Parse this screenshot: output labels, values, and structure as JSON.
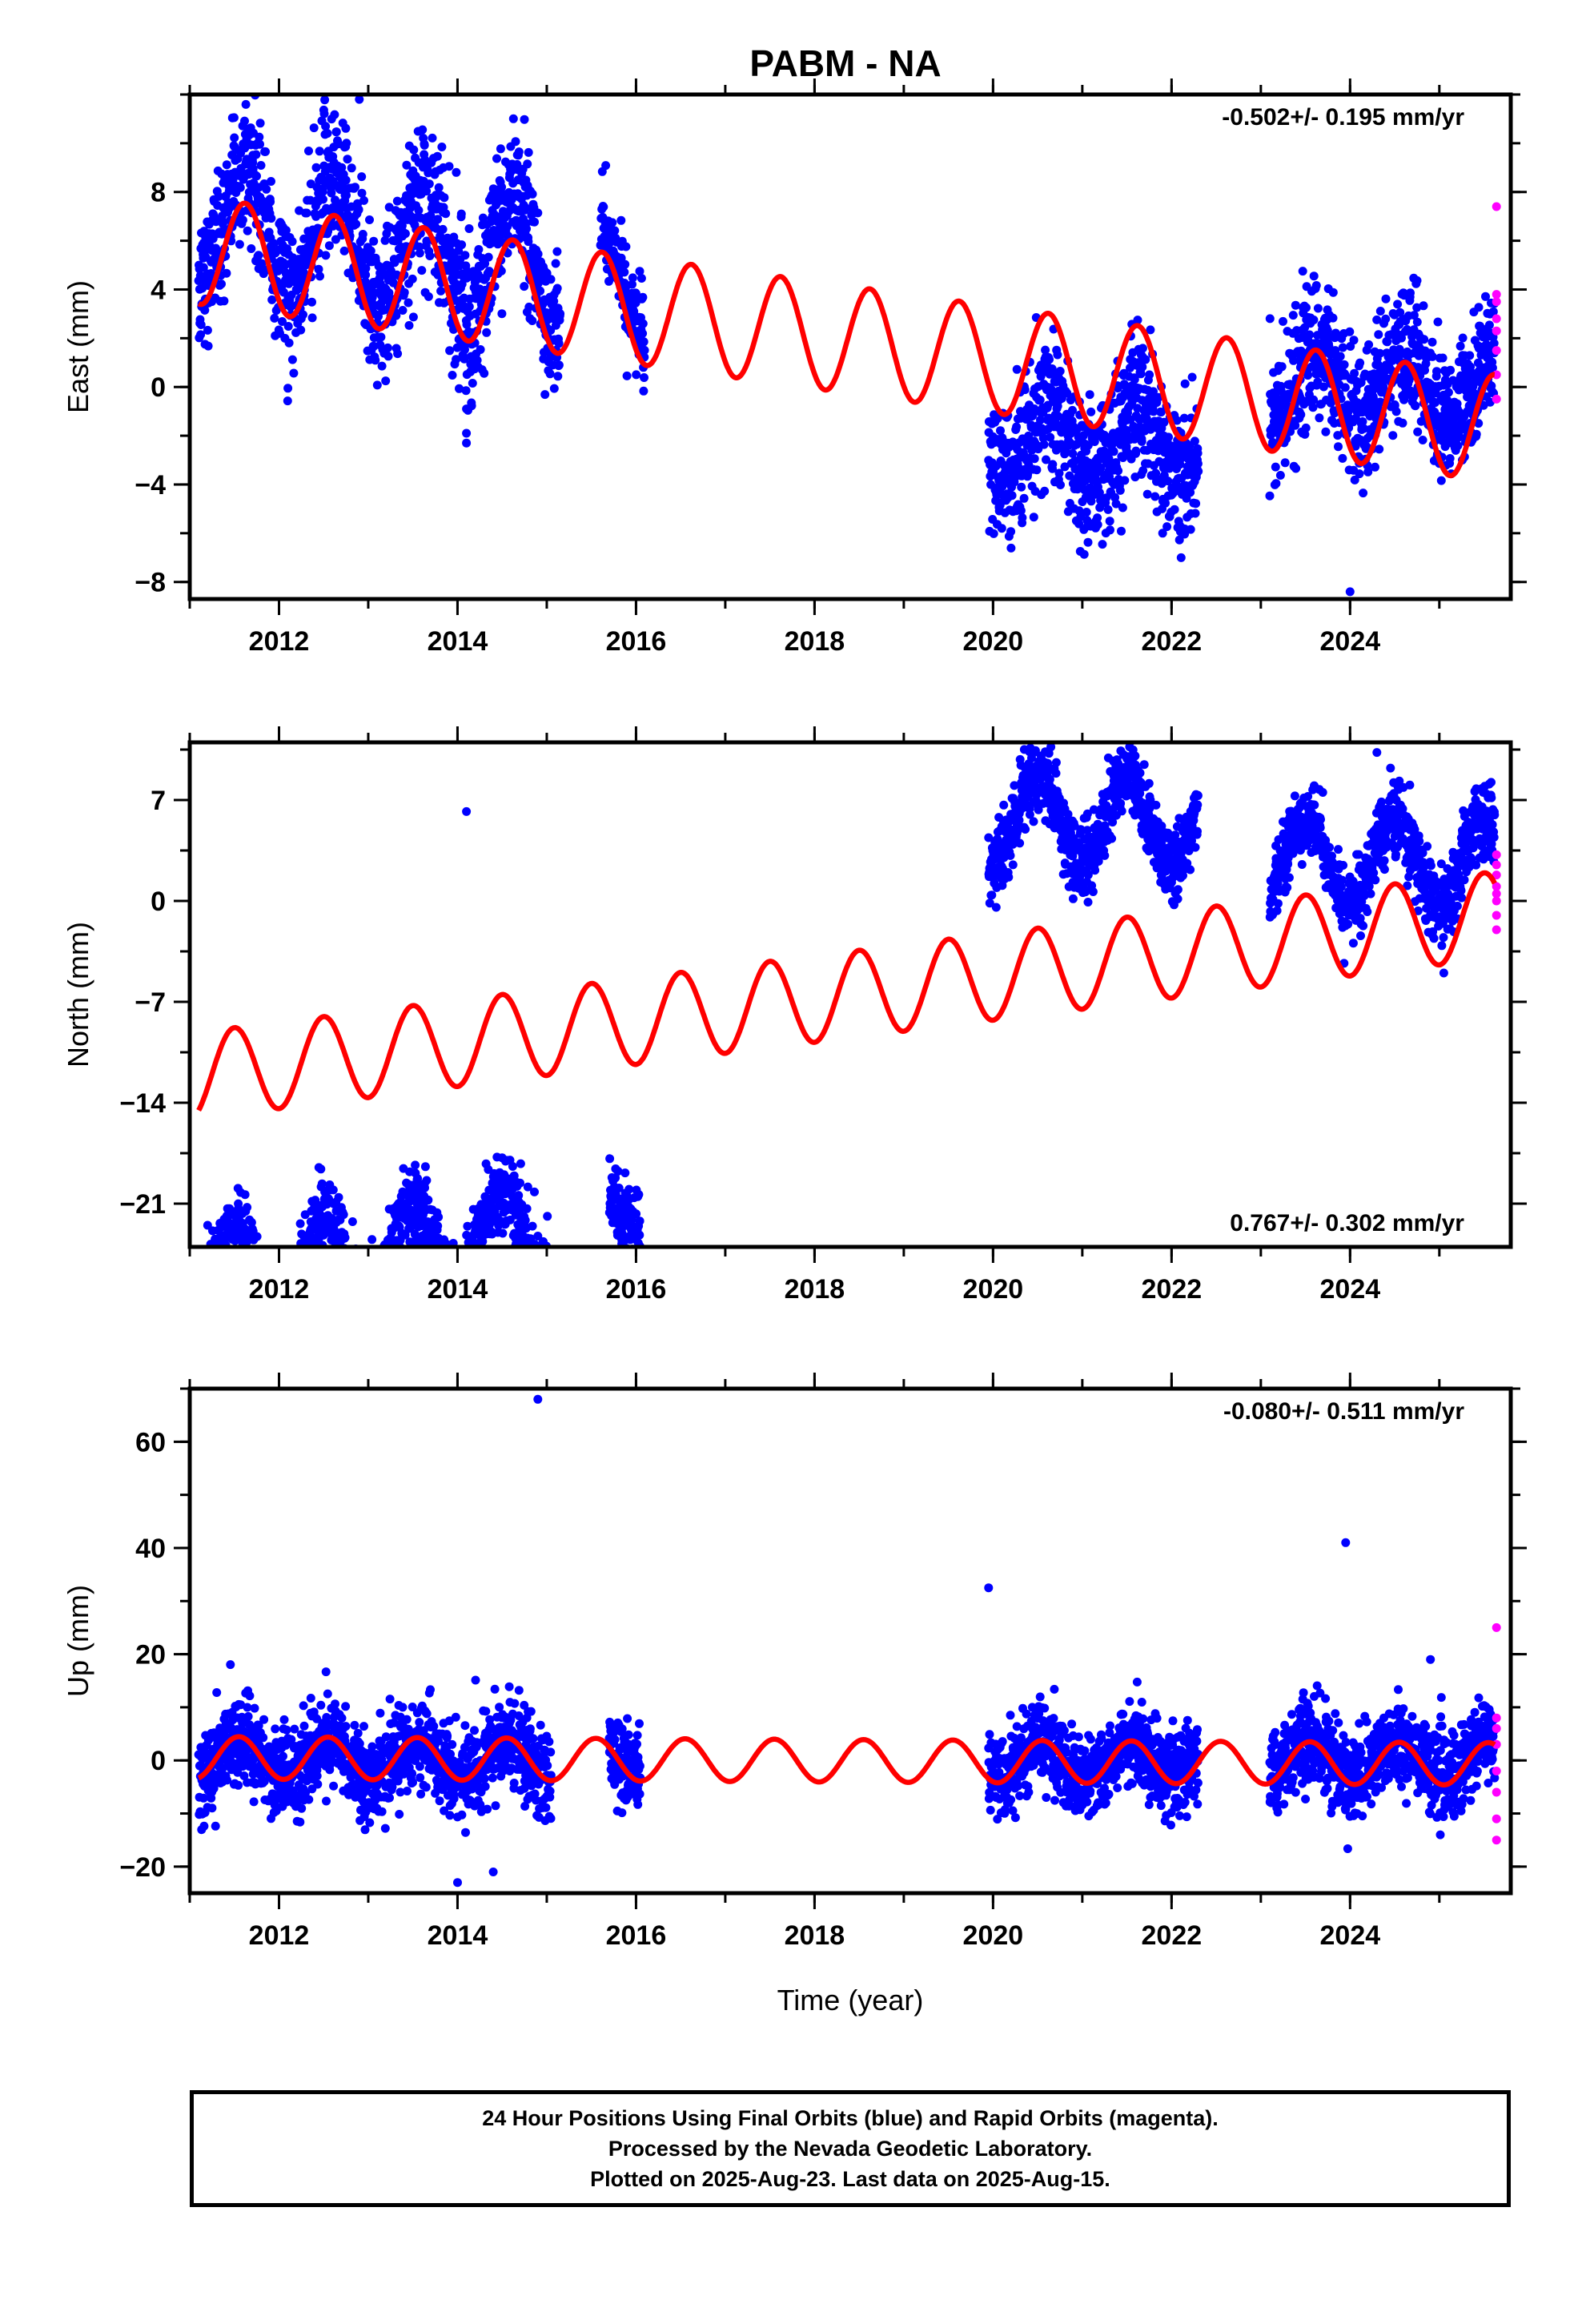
{
  "title": "PABM - NA",
  "xlabel": "Time (year)",
  "footer": {
    "line1": "24 Hour Positions Using Final Orbits (blue) and Rapid Orbits (magenta).",
    "line2": "Processed by the Nevada Geodetic Laboratory.",
    "line3": "Plotted on 2025-Aug-23. Last data on 2025-Aug-15."
  },
  "colors": {
    "final": "#0000ff",
    "rapid": "#ff00ff",
    "model": "#ff0000",
    "frame": "#000000"
  },
  "chart_data": [
    {
      "type": "scatter",
      "name": "east",
      "ylabel": "East (mm)",
      "rate": "-0.502+/- 0.195 mm/yr",
      "rate_position": "top-right",
      "xlim": [
        2011.0,
        2025.8
      ],
      "ylim": [
        -8.7,
        12.0
      ],
      "yticks": [
        -8,
        -4,
        0,
        4,
        8
      ],
      "xticks": [
        2012,
        2014,
        2016,
        2018,
        2020,
        2022,
        2024
      ],
      "segments": [
        {
          "start": 2011.1,
          "end": 2015.15,
          "offset": 1.3,
          "amp": 2.5,
          "noise": 1.5
        },
        {
          "start": 2015.6,
          "end": 2016.1,
          "offset": 1.0,
          "amp": 2.0,
          "noise": 1.0
        },
        {
          "start": 2019.95,
          "end": 2022.3,
          "offset": -2.2,
          "amp": 1.5,
          "noise": 1.4
        },
        {
          "start": 2023.1,
          "end": 2025.62,
          "offset": 0.0,
          "amp": 1.5,
          "noise": 1.3
        }
      ],
      "rapid": [
        -0.5,
        0.5,
        1.5,
        2.3,
        2.8,
        3.5,
        3.8,
        7.4
      ],
      "model": {
        "base": 5.6,
        "rate": -0.502,
        "amp": 2.2,
        "phase": 0.62
      },
      "outliers": [
        [
          2012.9,
          11.8
        ],
        [
          2014.1,
          -2.3
        ],
        [
          2014.1,
          -1.9
        ],
        [
          2014.1,
          -0.9
        ],
        [
          2024.0,
          -8.4
        ],
        [
          2021.9,
          -6.0
        ]
      ]
    },
    {
      "type": "scatter",
      "name": "north",
      "ylabel": "North (mm)",
      "rate": "0.767+/- 0.302 mm/yr",
      "rate_position": "bottom-right",
      "xlim": [
        2011.0,
        2025.8
      ],
      "ylim": [
        -24.0,
        11.0
      ],
      "yticks": [
        -21,
        -14,
        -7,
        0,
        7
      ],
      "xticks": [
        2012,
        2014,
        2016,
        2018,
        2020,
        2022,
        2024
      ],
      "segments": [
        {
          "start": 2011.1,
          "end": 2015.05,
          "offset": -7.3,
          "amp": 3.3,
          "noise": 1.5
        },
        {
          "start": 2015.7,
          "end": 2016.05,
          "offset": -6.2,
          "amp": 2.0,
          "noise": 1.2
        },
        {
          "start": 2019.95,
          "end": 2022.3,
          "offset": 5.5,
          "amp": 3.0,
          "noise": 1.3
        },
        {
          "start": 2023.1,
          "end": 2025.62,
          "offset": 2.8,
          "amp": 3.0,
          "noise": 1.3
        }
      ],
      "rapid": [
        -2.0,
        -1.0,
        0.0,
        0.5,
        1.0,
        1.8,
        2.5,
        3.2
      ],
      "model": {
        "base": -12.1,
        "rate": 0.767,
        "amp": 3.0,
        "phase": 0.5
      },
      "outliers": [
        [
          2014.1,
          6.2
        ],
        [
          2011.2,
          -22.5
        ],
        [
          2025.05,
          -5.0
        ],
        [
          2024.3,
          10.3
        ]
      ]
    },
    {
      "type": "scatter",
      "name": "up",
      "ylabel": "Up (mm)",
      "rate": "-0.080+/- 0.511 mm/yr",
      "rate_position": "top-right",
      "xlim": [
        2011.0,
        2025.8
      ],
      "ylim": [
        -25.0,
        70.0
      ],
      "yticks": [
        -20,
        0,
        20,
        40,
        60
      ],
      "xticks": [
        2012,
        2014,
        2016,
        2018,
        2020,
        2022,
        2024
      ],
      "segments": [
        {
          "start": 2011.1,
          "end": 2015.05,
          "offset": 0.0,
          "amp": 3.5,
          "noise": 4.0
        },
        {
          "start": 2015.7,
          "end": 2016.05,
          "offset": 0.0,
          "amp": 3.0,
          "noise": 4.0
        },
        {
          "start": 2019.95,
          "end": 2022.3,
          "offset": 0.0,
          "amp": 3.5,
          "noise": 3.8
        },
        {
          "start": 2023.1,
          "end": 2025.62,
          "offset": 0.0,
          "amp": 3.5,
          "noise": 4.0
        }
      ],
      "rapid": [
        -15,
        -11,
        -6,
        -2,
        3,
        6,
        8,
        25
      ],
      "model": {
        "base": 0.5,
        "rate": -0.08,
        "amp": 4.0,
        "phase": 0.55
      },
      "outliers": [
        [
          2014.9,
          68
        ],
        [
          2019.95,
          32.5
        ],
        [
          2023.95,
          41
        ],
        [
          2014.0,
          -23
        ],
        [
          2014.4,
          -21
        ],
        [
          2024.9,
          19
        ]
      ]
    }
  ]
}
